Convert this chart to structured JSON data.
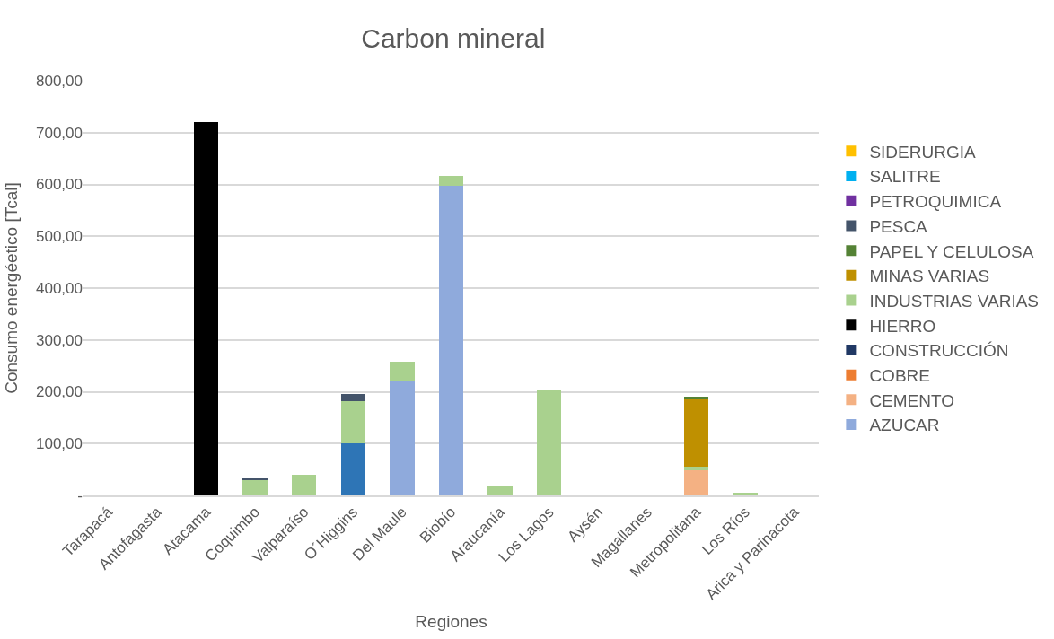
{
  "chart_data": {
    "type": "bar",
    "title": "Carbon mineral",
    "xlabel": "Regiones",
    "ylabel": "Consumo energéetico [Tcal]",
    "categories": [
      "Tarapacá",
      "Antofagasta",
      "Atacama",
      "Coquimbo",
      "Valparaíso",
      "O´Higgins",
      "Del Maule",
      "Biobío",
      "Araucanía",
      "Los Lagos",
      "Aysén",
      "Magallanes",
      "Metropolitana",
      "Los Ríos",
      "Arica y Parinacota"
    ],
    "stacked": true,
    "legend": "right",
    "grid": "y",
    "ylim": [
      0,
      800
    ],
    "yticks": [
      {
        "value": 0,
        "label": "-"
      },
      {
        "value": 100,
        "label": "100,00"
      },
      {
        "value": 200,
        "label": "200,00"
      },
      {
        "value": 300,
        "label": "300,00"
      },
      {
        "value": 400,
        "label": "400,00"
      },
      {
        "value": 500,
        "label": "500,00"
      },
      {
        "value": 600,
        "label": "600,00"
      },
      {
        "value": 700,
        "label": "700,00"
      },
      {
        "value": 800,
        "label": "800,00"
      }
    ],
    "series": [
      {
        "color": "#2e75b6",
        "values": [
          null,
          null,
          null,
          null,
          null,
          100,
          null,
          null,
          null,
          null,
          null,
          null,
          null,
          null,
          null
        ]
      },
      {
        "name": "AZUCAR",
        "color": "#8faadc",
        "values": [
          null,
          null,
          null,
          null,
          null,
          null,
          220,
          598,
          null,
          null,
          null,
          null,
          null,
          null,
          null
        ]
      },
      {
        "name": "CEMENTO",
        "color": "#f4b183",
        "values": [
          null,
          null,
          null,
          null,
          null,
          null,
          null,
          null,
          null,
          null,
          null,
          null,
          49,
          null,
          null
        ]
      },
      {
        "name": "COBRE",
        "color": "#ed7d31",
        "values": [
          null,
          null,
          null,
          null,
          null,
          null,
          null,
          null,
          null,
          null,
          null,
          null,
          null,
          null,
          null
        ]
      },
      {
        "name": "CONSTRUCCIÓN",
        "color": "#203864",
        "values": [
          null,
          null,
          null,
          null,
          null,
          null,
          null,
          null,
          null,
          null,
          null,
          null,
          null,
          null,
          null
        ]
      },
      {
        "name": "HIERRO",
        "color": "#000000",
        "values": [
          null,
          null,
          721,
          null,
          null,
          null,
          null,
          null,
          null,
          null,
          null,
          null,
          null,
          null,
          null
        ]
      },
      {
        "name": "INDUSTRIAS VARIAS",
        "color": "#a9d18e",
        "values": [
          null,
          null,
          null,
          30,
          39,
          82,
          38,
          18,
          17,
          203,
          null,
          null,
          7,
          6,
          null
        ]
      },
      {
        "name": "MINAS VARIAS",
        "color": "#bf9000",
        "values": [
          null,
          null,
          null,
          null,
          null,
          null,
          null,
          null,
          null,
          null,
          null,
          null,
          131,
          null,
          null
        ]
      },
      {
        "name": "PAPEL Y CELULOSA",
        "color": "#548235",
        "values": [
          null,
          null,
          null,
          null,
          null,
          null,
          null,
          null,
          null,
          null,
          null,
          null,
          3,
          null,
          null
        ]
      },
      {
        "name": "PESCA",
        "color": "#44546a",
        "values": [
          null,
          null,
          null,
          3,
          null,
          14,
          null,
          null,
          null,
          null,
          null,
          null,
          null,
          null,
          null
        ]
      },
      {
        "name": "PETROQUIMICA",
        "color": "#7030a0",
        "values": [
          null,
          null,
          null,
          null,
          null,
          null,
          null,
          null,
          null,
          null,
          null,
          null,
          null,
          null,
          null
        ]
      },
      {
        "name": "SALITRE",
        "color": "#00b0f0",
        "values": [
          null,
          null,
          null,
          null,
          null,
          null,
          null,
          null,
          null,
          null,
          null,
          null,
          null,
          null,
          null
        ]
      },
      {
        "name": "SIDERURGIA",
        "color": "#ffc000",
        "values": [
          null,
          null,
          null,
          null,
          null,
          null,
          null,
          null,
          null,
          null,
          null,
          null,
          null,
          null,
          null
        ]
      }
    ]
  }
}
